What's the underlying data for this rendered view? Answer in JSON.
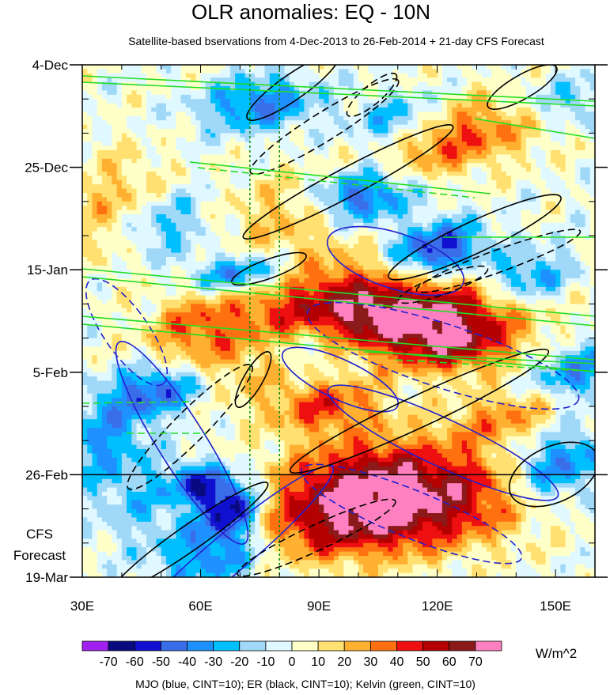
{
  "chart_data": {
    "type": "heatmap",
    "title": "OLR anomalies: EQ - 10N",
    "subtitle": "Satellite-based bservations from 4-Dec-2013 to 26-Feb-2014 + 21-day CFS Forecast",
    "x_ticks": [
      {
        "value": 30,
        "label": "30E"
      },
      {
        "value": 60,
        "label": "60E"
      },
      {
        "value": 90,
        "label": "90E"
      },
      {
        "value": 120,
        "label": "120E"
      },
      {
        "value": 150,
        "label": "150E"
      }
    ],
    "xlim": [
      30,
      160
    ],
    "y_ticks": [
      {
        "day": 0,
        "label": "4-Dec"
      },
      {
        "day": 21,
        "label": "25-Dec"
      },
      {
        "day": 42,
        "label": "15-Jan"
      },
      {
        "day": 63,
        "label": "5-Feb"
      },
      {
        "day": 84,
        "label": "26-Feb"
      },
      {
        "day": 105,
        "label": "19-Mar"
      }
    ],
    "ylim_days": [
      0,
      105
    ],
    "forecast_start_day": 84,
    "forecast_label_line1": "CFS",
    "forecast_label_line2": "Forecast",
    "reference_longitudes": [
      72.5,
      80
    ],
    "colorbar": {
      "levels": [
        -70,
        -60,
        -50,
        -40,
        -30,
        -20,
        -10,
        0,
        10,
        20,
        30,
        40,
        50,
        60,
        70
      ],
      "tick_labels": [
        "-70",
        "-60",
        "-50",
        "-40",
        "-30",
        "-20",
        "-10",
        "0",
        "10",
        "20",
        "30",
        "40",
        "50",
        "60",
        "70"
      ],
      "colors": [
        "#a020f0",
        "#0a0a80",
        "#1010d0",
        "#3a6ee8",
        "#1e90ff",
        "#00bfff",
        "#a0d8f8",
        "#e0f8ff",
        "#ffffc8",
        "#ffe070",
        "#ffb030",
        "#ff7010",
        "#ee1010",
        "#b40000",
        "#8b1a1a",
        "#ff80c0"
      ],
      "units": "W/m^2"
    },
    "contours": {
      "mjo_color": "#2020d0",
      "er_color": "#000000",
      "kelvin_color": "#22dd22"
    },
    "footnote": "MJO (blue, CINT=10); ER (black, CINT=10); Kelvin (green, CINT=10)"
  }
}
